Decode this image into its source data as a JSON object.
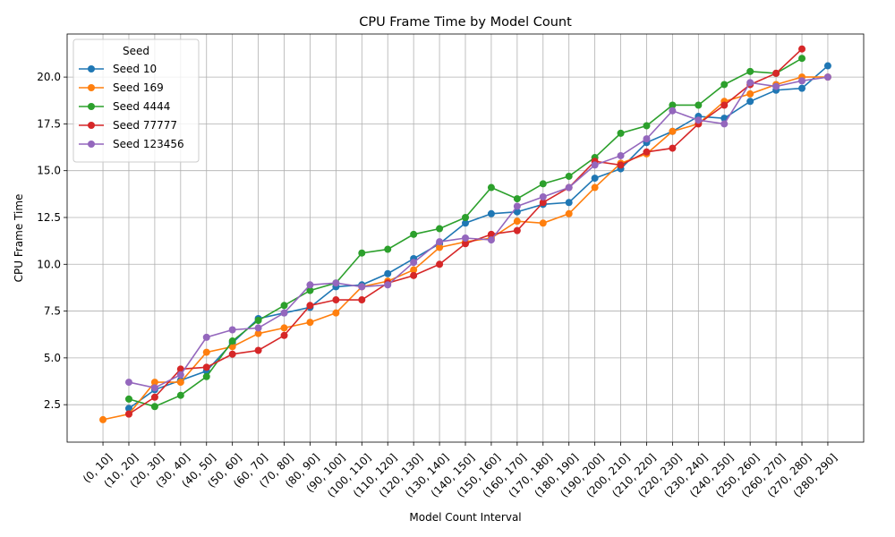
{
  "chart_data": {
    "type": "line",
    "title": "CPU Frame Time by Model Count",
    "xlabel": "Model Count Interval",
    "ylabel": "CPU Frame Time",
    "categories": [
      "(0, 10]",
      "(10, 20]",
      "(20, 30]",
      "(30, 40]",
      "(40, 50]",
      "(50, 60]",
      "(60, 70]",
      "(70, 80]",
      "(80, 90]",
      "(90, 100]",
      "(100, 110]",
      "(110, 120]",
      "(120, 130]",
      "(130, 140]",
      "(140, 150]",
      "(150, 160]",
      "(160, 170]",
      "(170, 180]",
      "(180, 190]",
      "(190, 200]",
      "(200, 210]",
      "(210, 220]",
      "(220, 230]",
      "(230, 240]",
      "(240, 250]",
      "(250, 260]",
      "(260, 270]",
      "(270, 280]",
      "(280, 290]"
    ],
    "ylim": [
      0.5,
      22.3
    ],
    "yticks": [
      2.5,
      5.0,
      7.5,
      10.0,
      12.5,
      15.0,
      17.5,
      20.0
    ],
    "ytick_labels": [
      "2.5",
      "5.0",
      "7.5",
      "10.0",
      "12.5",
      "15.0",
      "17.5",
      "20.0"
    ],
    "grid": true,
    "legend": {
      "title": "Seed",
      "placement": "top-left"
    },
    "series": [
      {
        "name": "Seed 10",
        "color": "#1f77b4",
        "values": [
          null,
          2.3,
          3.3,
          3.8,
          4.3,
          5.8,
          7.1,
          7.4,
          7.7,
          8.8,
          8.9,
          9.5,
          10.3,
          11.1,
          12.2,
          12.7,
          12.8,
          13.2,
          13.3,
          14.6,
          15.1,
          16.5,
          17.1,
          17.9,
          17.8,
          18.7,
          19.3,
          19.4,
          20.6
        ]
      },
      {
        "name": "Seed 169",
        "color": "#ff7f0e",
        "values": [
          1.7,
          2.0,
          3.7,
          3.7,
          5.3,
          5.6,
          6.3,
          6.6,
          6.9,
          7.4,
          8.8,
          9.1,
          9.7,
          10.9,
          11.2,
          11.4,
          12.3,
          12.2,
          12.7,
          14.1,
          15.4,
          15.9,
          17.1,
          17.5,
          18.7,
          19.1,
          19.6,
          20.0,
          20.0
        ]
      },
      {
        "name": "Seed 4444",
        "color": "#2ca02c",
        "values": [
          null,
          2.8,
          2.4,
          3.0,
          4.0,
          5.9,
          7.0,
          7.8,
          8.6,
          9.0,
          10.6,
          10.8,
          11.6,
          11.9,
          12.5,
          14.1,
          13.5,
          14.3,
          14.7,
          15.7,
          17.0,
          17.4,
          18.5,
          18.5,
          19.6,
          20.3,
          20.2,
          21.0,
          null
        ]
      },
      {
        "name": "Seed 77777",
        "color": "#d62728",
        "values": [
          null,
          2.0,
          2.9,
          4.4,
          4.5,
          5.2,
          5.4,
          6.2,
          7.8,
          8.1,
          8.1,
          9.0,
          9.4,
          10.0,
          11.1,
          11.6,
          11.8,
          13.3,
          14.1,
          15.5,
          15.3,
          16.0,
          16.2,
          17.5,
          18.5,
          19.6,
          20.2,
          21.5,
          null
        ]
      },
      {
        "name": "Seed 123456",
        "color": "#9467bd",
        "values": [
          null,
          3.7,
          3.4,
          4.1,
          6.1,
          6.5,
          6.6,
          7.4,
          8.9,
          9.0,
          8.8,
          8.9,
          10.1,
          11.2,
          11.4,
          11.3,
          13.1,
          13.6,
          14.1,
          15.3,
          15.8,
          16.7,
          18.2,
          17.7,
          17.5,
          19.7,
          19.5,
          19.8,
          20.0
        ]
      }
    ]
  }
}
